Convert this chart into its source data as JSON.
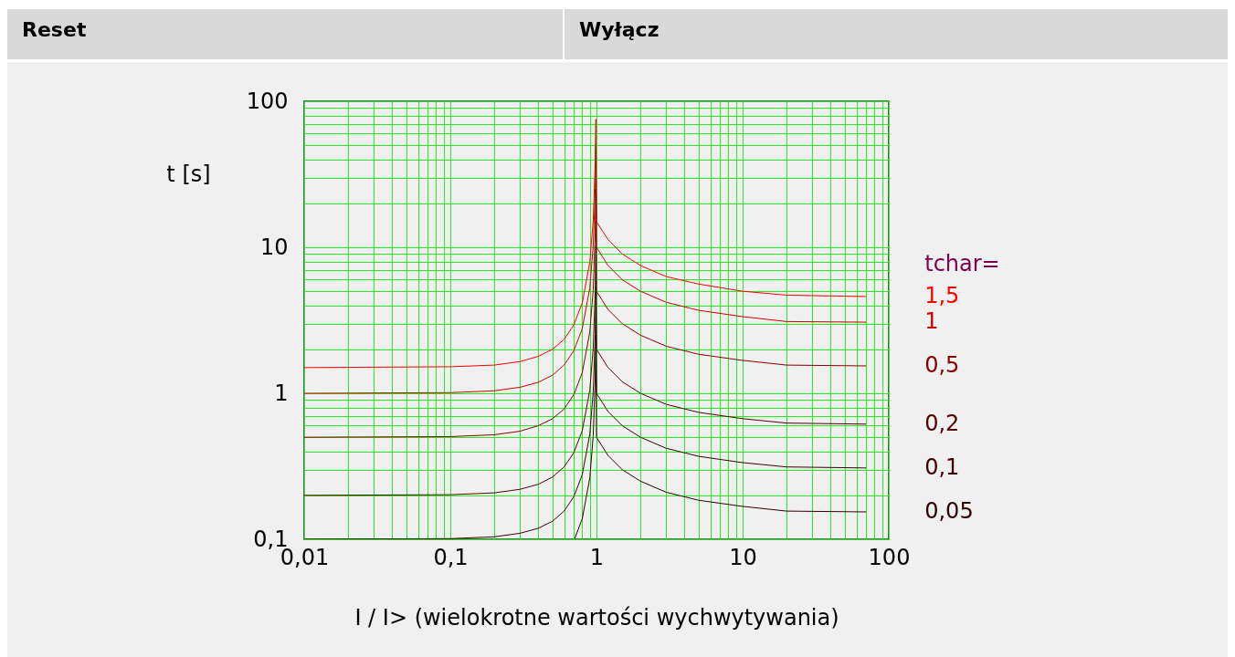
{
  "chart_data": {
    "type": "line",
    "xlabel": "I / I> (wielokrotne wartości wychwytywania)",
    "ylabel": "t [s]",
    "legend_title": "tchar=",
    "log": "xy",
    "grid": true,
    "legend": "right",
    "line_style": "solid",
    "marker": "none",
    "annotations": [
      "Reset",
      "Wyłącz"
    ],
    "xlim": [
      0.01,
      100
    ],
    "ylim": [
      0.1,
      100
    ],
    "xticks": [
      {
        "value": 0.01,
        "label": "0,01"
      },
      {
        "value": 0.02,
        "label": null
      },
      {
        "value": 0.03,
        "label": null
      },
      {
        "value": 0.04,
        "label": null
      },
      {
        "value": 0.05,
        "label": null
      },
      {
        "value": 0.06,
        "label": null
      },
      {
        "value": 0.07,
        "label": null
      },
      {
        "value": 0.08,
        "label": null
      },
      {
        "value": 0.09,
        "label": null
      },
      {
        "value": 0.1,
        "label": "0,1"
      },
      {
        "value": 0.2,
        "label": null
      },
      {
        "value": 0.3,
        "label": null
      },
      {
        "value": 0.4,
        "label": null
      },
      {
        "value": 0.5,
        "label": null
      },
      {
        "value": 0.6,
        "label": null
      },
      {
        "value": 0.7,
        "label": null
      },
      {
        "value": 0.8,
        "label": null
      },
      {
        "value": 0.9,
        "label": null
      },
      1,
      {
        "value": 2,
        "label": null
      },
      {
        "value": 3,
        "label": null
      },
      {
        "value": 4,
        "label": null
      },
      {
        "value": 5,
        "label": null
      },
      {
        "value": 6,
        "label": null
      },
      {
        "value": 7,
        "label": null
      },
      {
        "value": 8,
        "label": null
      },
      {
        "value": 9,
        "label": null
      },
      10,
      {
        "value": 20,
        "label": null
      },
      {
        "value": 30,
        "label": null
      },
      {
        "value": 40,
        "label": null
      },
      {
        "value": 50,
        "label": null
      },
      {
        "value": 60,
        "label": null
      },
      {
        "value": 70,
        "label": null
      },
      {
        "value": 80,
        "label": null
      },
      {
        "value": 90,
        "label": null
      },
      100
    ],
    "yticks": [
      {
        "value": 0.1,
        "label": "0,1"
      },
      {
        "value": 0.2,
        "label": null
      },
      {
        "value": 0.3,
        "label": null
      },
      {
        "value": 0.4,
        "label": null
      },
      {
        "value": 0.5,
        "label": null
      },
      {
        "value": 0.6,
        "label": null
      },
      {
        "value": 0.7,
        "label": null
      },
      {
        "value": 0.8,
        "label": null
      },
      {
        "value": 0.9,
        "label": null
      },
      1,
      {
        "value": 2,
        "label": null
      },
      {
        "value": 3,
        "label": null
      },
      {
        "value": 4,
        "label": null
      },
      {
        "value": 5,
        "label": null
      },
      {
        "value": 6,
        "label": null
      },
      {
        "value": 7,
        "label": null
      },
      {
        "value": 8,
        "label": null
      },
      {
        "value": 9,
        "label": null
      },
      10,
      {
        "value": 20,
        "label": null
      },
      {
        "value": 30,
        "label": null
      },
      {
        "value": 40,
        "label": null
      },
      {
        "value": 50,
        "label": null
      },
      {
        "value": 60,
        "label": null
      },
      {
        "value": 70,
        "label": null
      },
      {
        "value": 80,
        "label": null
      },
      {
        "value": 90,
        "label": null
      },
      100
    ],
    "x": [
      0.01,
      0.1,
      0.2,
      0.3,
      0.4,
      0.5,
      0.6,
      0.7,
      0.8,
      0.9,
      0.95,
      0.98,
      0.99,
      1,
      1.1,
      1.2,
      1.5,
      2,
      3,
      5,
      10,
      20,
      70
    ],
    "series": [
      {
        "name": "1,5",
        "color": "#ff0000",
        "values": [
          1.5,
          1.52,
          1.56,
          1.65,
          1.79,
          2.0,
          2.34,
          2.94,
          4.17,
          7.9,
          15.4,
          37.9,
          75.4,
          15,
          12.9,
          11.3,
          9.0,
          7.5,
          6.3,
          5.6,
          5.0,
          4.7,
          4.6
        ]
      },
      {
        "name": "1",
        "color": "#cc0000",
        "values": [
          1,
          1.01,
          1.04,
          1.1,
          1.19,
          1.33,
          1.56,
          1.96,
          2.78,
          5.26,
          10.3,
          25.3,
          50.3,
          10,
          8.6,
          7.5,
          6.0,
          5.0,
          4.2,
          3.7,
          3.35,
          3.1,
          3.07
        ]
      },
      {
        "name": "0,5",
        "color": "#880000",
        "values": [
          0.5,
          0.505,
          0.52,
          0.55,
          0.6,
          0.67,
          0.78,
          0.98,
          1.39,
          2.63,
          5.13,
          12.6,
          25.1,
          5,
          4.3,
          3.75,
          3.0,
          2.5,
          2.1,
          1.85,
          1.68,
          1.56,
          1.54
        ]
      },
      {
        "name": "0,2",
        "color": "#550000",
        "values": [
          0.2,
          0.202,
          0.208,
          0.22,
          0.238,
          0.267,
          0.313,
          0.392,
          0.556,
          1.05,
          2.05,
          5.05,
          10.1,
          2,
          1.72,
          1.5,
          1.2,
          1.0,
          0.84,
          0.74,
          0.67,
          0.625,
          0.615
        ]
      },
      {
        "name": "0,1",
        "color": "#400000",
        "values": [
          0.1,
          0.101,
          0.104,
          0.11,
          0.119,
          0.133,
          0.156,
          0.196,
          0.278,
          0.526,
          1.03,
          2.53,
          5.03,
          1,
          0.86,
          0.75,
          0.6,
          0.5,
          0.42,
          0.37,
          0.335,
          0.313,
          0.308
        ]
      },
      {
        "name": "0,05",
        "color": "#300000",
        "x": [
          0.71,
          0.8,
          0.9,
          0.95,
          0.98,
          0.99,
          1,
          1.1,
          1.2,
          1.5,
          2,
          3,
          5,
          10,
          20,
          70
        ],
        "values": [
          0.101,
          0.139,
          0.263,
          0.513,
          1.26,
          2.51,
          0.5,
          0.43,
          0.375,
          0.3,
          0.25,
          0.21,
          0.185,
          0.168,
          0.156,
          0.154
        ]
      }
    ]
  }
}
